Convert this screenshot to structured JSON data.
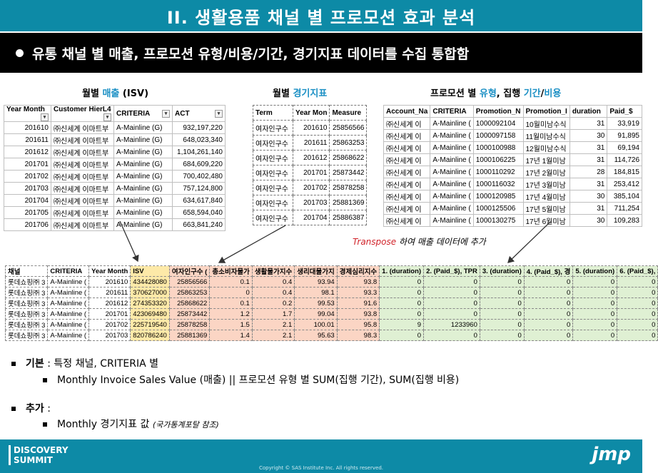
{
  "title": "II. 생활용품 채널 별 프로모션 효과 분석",
  "subtitle": "유통 채널 별 매출, 프로모션 유형/비용/기간, 경기지표 데이터를 수집 통합함",
  "sections": {
    "sales": {
      "pre": "월별 ",
      "blue": "매출",
      "post": " (ISV)"
    },
    "indicator": {
      "pre": "월별 ",
      "blue": "경기지표"
    },
    "promo": {
      "pre": "프로모션 별 ",
      "blue1": "유형",
      "mid": ", 집행 ",
      "blue2": "기간",
      "slash": "/",
      "blue3": "비용"
    }
  },
  "sales_table": {
    "headers": [
      "Year Month",
      "Customer HierL4",
      "CRITERIA",
      "ACT"
    ],
    "rows": [
      [
        "201610",
        "㈜신세계 이마트부",
        "A-Mainline (G)",
        "932,197,220"
      ],
      [
        "201611",
        "㈜신세계 이마트부",
        "A-Mainline (G)",
        "648,023,340"
      ],
      [
        "201612",
        "㈜신세계 이마트부",
        "A-Mainline (G)",
        "1,104,261,140"
      ],
      [
        "201701",
        "㈜신세계 이마트부",
        "A-Mainline (G)",
        "684,609,220"
      ],
      [
        "201702",
        "㈜신세계 이마트부",
        "A-Mainline (G)",
        "700,402,480"
      ],
      [
        "201703",
        "㈜신세계 이마트부",
        "A-Mainline (G)",
        "757,124,800"
      ],
      [
        "201704",
        "㈜신세계 이마트부",
        "A-Mainline (G)",
        "634,617,840"
      ],
      [
        "201705",
        "㈜신세계 이마트부",
        "A-Mainline (G)",
        "658,594,040"
      ],
      [
        "201706",
        "㈜신세계 이마트부",
        "A-Mainline (G)",
        "663,841,240"
      ]
    ]
  },
  "indicator_table": {
    "headers": [
      "Term",
      "Year Mon",
      "Measure"
    ],
    "rows": [
      [
        "여자인구수",
        "201610",
        "25856566"
      ],
      [
        "여자인구수",
        "201611",
        "25863253"
      ],
      [
        "여자인구수",
        "201612",
        "25868622"
      ],
      [
        "여자인구수",
        "201701",
        "25873442"
      ],
      [
        "여자인구수",
        "201702",
        "25878258"
      ],
      [
        "여자인구수",
        "201703",
        "25881369"
      ],
      [
        "여자인구수",
        "201704",
        "25886387"
      ]
    ]
  },
  "promo_table": {
    "headers": [
      "Account_Na",
      "CRITERIA",
      "Promotion_N",
      "Promotion_I",
      "duration",
      "Paid_$"
    ],
    "rows": [
      [
        "㈜신세계 이",
        "A-Mainline (",
        "1000092104",
        "10월미남수식",
        "31",
        "33,919"
      ],
      [
        "㈜신세계 이",
        "A-Mainline (",
        "1000097158",
        "11월미남수식",
        "30",
        "91,895"
      ],
      [
        "㈜신세계 이",
        "A-Mainline (",
        "1000100988",
        "12월미남수식",
        "31",
        "69,194"
      ],
      [
        "㈜신세계 이",
        "A-Mainline (",
        "1000106225",
        "17년 1월미남",
        "31",
        "114,726"
      ],
      [
        "㈜신세계 이",
        "A-Mainline (",
        "1000110292",
        "17년 2월미남",
        "28",
        "184,815"
      ],
      [
        "㈜신세계 이",
        "A-Mainline (",
        "1000116032",
        "17년 3월미남",
        "31",
        "253,412"
      ],
      [
        "㈜신세계 이",
        "A-Mainline (",
        "1000120985",
        "17년 4월미남",
        "30",
        "385,104"
      ],
      [
        "㈜신세계 이",
        "A-Mainline (",
        "1000125506",
        "17년 5월미남",
        "31",
        "711,254"
      ],
      [
        "㈜신세계 이",
        "A-Mainline (",
        "1000130275",
        "17년 6월미남",
        "30",
        "109,283"
      ]
    ]
  },
  "transpose_note": {
    "red": "Transpose",
    "rest": " 하여 매출 데이터에 추가"
  },
  "merged_table": {
    "headers": [
      "채널",
      "CRITERIA",
      "Year Month",
      "ISV",
      "여자인구수 (",
      "총소비자물가",
      "생활물가지수",
      "생리대물가지",
      "경제심리지수",
      "1. (duration)",
      "2. (Paid_$), TPR",
      "3. (duration)",
      "4. (Paid_$), 경",
      "5. (duration)",
      "6. (Paid_$), "
    ],
    "rows": [
      [
        "롯데쇼핑㈜ 3",
        "A-Mainline (",
        "201610",
        "434428080",
        "25856566",
        "0.1",
        "0.4",
        "93.94",
        "93.8",
        "0",
        "0",
        "0",
        "0",
        "0",
        "0"
      ],
      [
        "롯데쇼핑㈜ 3",
        "A-Mainline (",
        "201611",
        "370627000",
        "25863253",
        "0",
        "0.4",
        "98.1",
        "93.3",
        "0",
        "0",
        "0",
        "0",
        "0",
        "0"
      ],
      [
        "롯데쇼핑㈜ 3",
        "A-Mainline (",
        "201612",
        "274353320",
        "25868622",
        "0.1",
        "0.2",
        "99.53",
        "91.6",
        "0",
        "0",
        "0",
        "0",
        "0",
        "0"
      ],
      [
        "롯데쇼핑㈜ 3",
        "A-Mainline (",
        "201701",
        "423069480",
        "25873442",
        "1.2",
        "1.7",
        "99.04",
        "93.8",
        "0",
        "0",
        "0",
        "0",
        "0",
        "0"
      ],
      [
        "롯데쇼핑㈜ 3",
        "A-Mainline (",
        "201702",
        "225719540",
        "25878258",
        "1.5",
        "2.1",
        "100.01",
        "95.8",
        "9",
        "1233960",
        "0",
        "0",
        "0",
        "0"
      ],
      [
        "롯데쇼핑㈜ 3",
        "A-Mainline (",
        "201703",
        "820786240",
        "25881369",
        "1.4",
        "2.1",
        "95.63",
        "98.3",
        "0",
        "0",
        "0",
        "0",
        "0",
        "0"
      ]
    ]
  },
  "bullets": {
    "basic_label": "기본",
    "basic_text": " : 특정 채널, CRITERIA 별",
    "basic_sub": "Monthly Invoice Sales Value (매출) || 프로모션 유형 별 SUM(집행 기간), SUM(집행 비용)",
    "extra_label": "추가",
    "extra_text": " :",
    "extra_sub": "Monthly 경기지표 값 ",
    "extra_note": "(국가통계포탈 참조)"
  },
  "footer": {
    "logo_line1": "DISCOVERY",
    "logo_line2": "SUMMIT",
    "jmp": "jmp",
    "copyright": "Copyright © SAS Institute Inc. All rights reserved."
  }
}
